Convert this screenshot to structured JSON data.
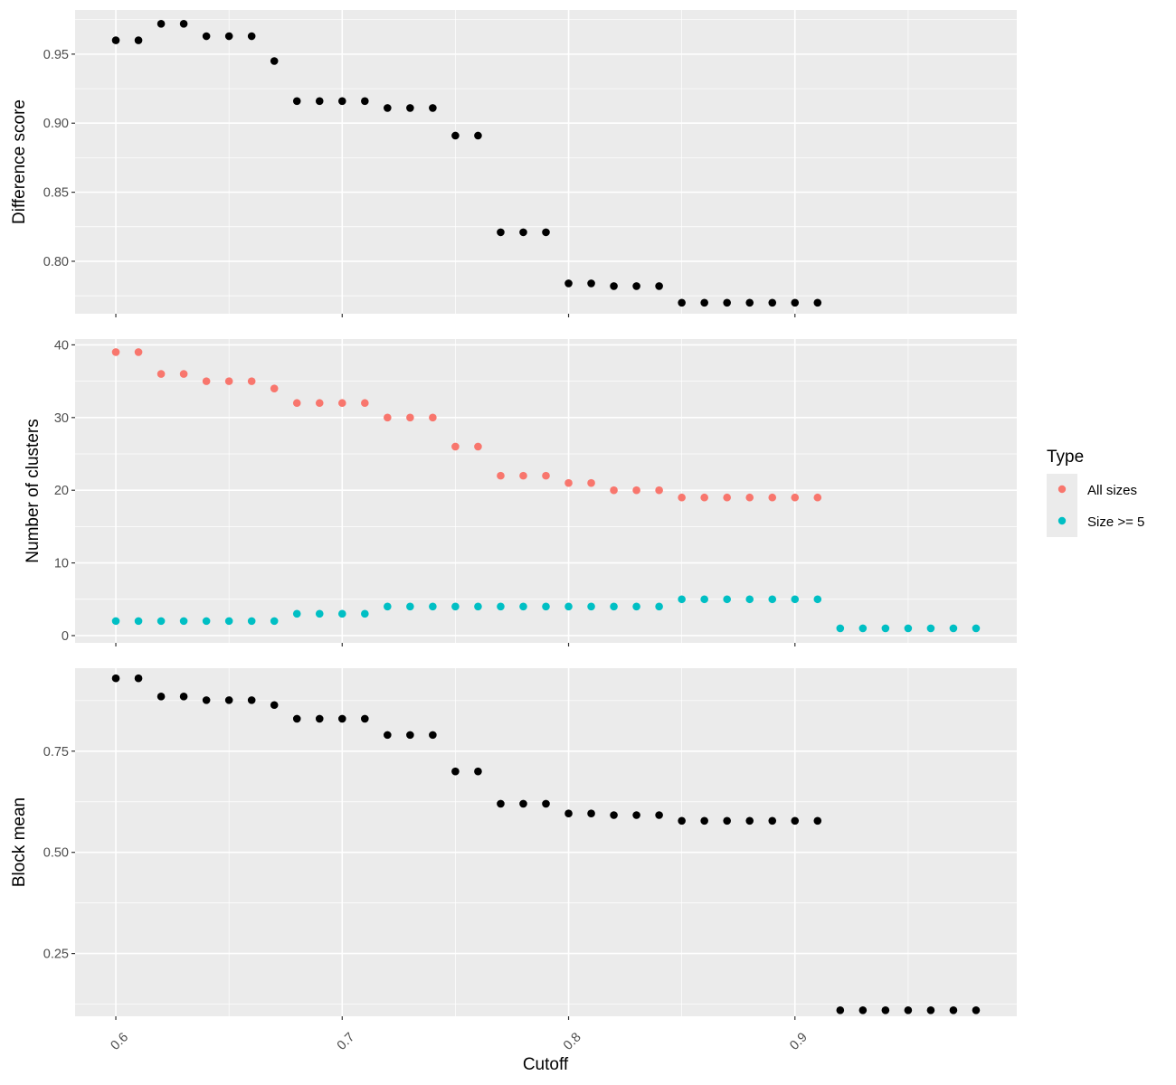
{
  "chart_data": {
    "type": "scatter",
    "xlabel": "Cutoff",
    "x_ticks": [
      0.6,
      0.7,
      0.8,
      0.9
    ],
    "x_tick_labels": [
      "0.6",
      "0.7",
      "0.8",
      "0.9"
    ],
    "xlim": [
      0.582,
      0.998
    ],
    "grid": true,
    "panels": [
      {
        "ylabel": "Difference score",
        "ylim": [
          0.762,
          0.982
        ],
        "y_ticks": [
          0.8,
          0.85,
          0.9,
          0.95
        ],
        "y_tick_labels": [
          "0.80",
          "0.85",
          "0.90",
          "0.95"
        ],
        "series": [
          {
            "color": "#000000",
            "x": [
              0.6,
              0.61,
              0.62,
              0.63,
              0.64,
              0.65,
              0.66,
              0.67,
              0.68,
              0.69,
              0.7,
              0.71,
              0.72,
              0.73,
              0.74,
              0.75,
              0.76,
              0.77,
              0.78,
              0.79,
              0.8,
              0.81,
              0.82,
              0.83,
              0.84,
              0.85,
              0.86,
              0.87,
              0.88,
              0.89,
              0.9,
              0.91
            ],
            "y": [
              0.96,
              0.96,
              0.972,
              0.972,
              0.963,
              0.963,
              0.963,
              0.945,
              0.916,
              0.916,
              0.916,
              0.916,
              0.911,
              0.911,
              0.911,
              0.891,
              0.891,
              0.821,
              0.821,
              0.821,
              0.784,
              0.784,
              0.782,
              0.782,
              0.782,
              0.77,
              0.77,
              0.77,
              0.77,
              0.77,
              0.77,
              0.77
            ]
          }
        ]
      },
      {
        "ylabel": "Number of clusters",
        "ylim": [
          -1,
          40.8
        ],
        "y_ticks": [
          0,
          10,
          20,
          30,
          40
        ],
        "y_tick_labels": [
          "0",
          "10",
          "20",
          "30",
          "40"
        ],
        "series": [
          {
            "name": "All sizes",
            "color": "#F8766D",
            "x": [
              0.6,
              0.61,
              0.62,
              0.63,
              0.64,
              0.65,
              0.66,
              0.67,
              0.68,
              0.69,
              0.7,
              0.71,
              0.72,
              0.73,
              0.74,
              0.75,
              0.76,
              0.77,
              0.78,
              0.79,
              0.8,
              0.81,
              0.82,
              0.83,
              0.84,
              0.85,
              0.86,
              0.87,
              0.88,
              0.89,
              0.9,
              0.91
            ],
            "y": [
              39,
              39,
              36,
              36,
              35,
              35,
              35,
              34,
              32,
              32,
              32,
              32,
              30,
              30,
              30,
              26,
              26,
              22,
              22,
              22,
              21,
              21,
              20,
              20,
              20,
              19,
              19,
              19,
              19,
              19,
              19,
              19
            ]
          },
          {
            "name": "Size >= 5",
            "color": "#00BFC4",
            "x": [
              0.6,
              0.61,
              0.62,
              0.63,
              0.64,
              0.65,
              0.66,
              0.67,
              0.68,
              0.69,
              0.7,
              0.71,
              0.72,
              0.73,
              0.74,
              0.75,
              0.76,
              0.77,
              0.78,
              0.79,
              0.8,
              0.81,
              0.82,
              0.83,
              0.84,
              0.85,
              0.86,
              0.87,
              0.88,
              0.89,
              0.9,
              0.91,
              0.92,
              0.93,
              0.94,
              0.95,
              0.96,
              0.97,
              0.98
            ],
            "y": [
              2,
              2,
              2,
              2,
              2,
              2,
              2,
              2,
              3,
              3,
              3,
              3,
              4,
              4,
              4,
              4,
              4,
              4,
              4,
              4,
              4,
              4,
              4,
              4,
              4,
              5,
              5,
              5,
              5,
              5,
              5,
              5,
              1,
              1,
              1,
              1,
              1,
              1,
              1
            ]
          }
        ]
      },
      {
        "ylabel": "Block mean",
        "ylim": [
          0.095,
          0.955
        ],
        "y_ticks": [
          0.25,
          0.5,
          0.75
        ],
        "y_tick_labels": [
          "0.25",
          "0.50",
          "0.75"
        ],
        "series": [
          {
            "color": "#000000",
            "x": [
              0.6,
              0.61,
              0.62,
              0.63,
              0.64,
              0.65,
              0.66,
              0.67,
              0.68,
              0.69,
              0.7,
              0.71,
              0.72,
              0.73,
              0.74,
              0.75,
              0.76,
              0.77,
              0.78,
              0.79,
              0.8,
              0.81,
              0.82,
              0.83,
              0.84,
              0.85,
              0.86,
              0.87,
              0.88,
              0.89,
              0.9,
              0.91,
              0.92,
              0.93,
              0.94,
              0.95,
              0.96,
              0.97,
              0.98
            ],
            "y": [
              0.93,
              0.93,
              0.885,
              0.885,
              0.876,
              0.876,
              0.876,
              0.864,
              0.83,
              0.83,
              0.83,
              0.83,
              0.79,
              0.79,
              0.79,
              0.7,
              0.7,
              0.62,
              0.62,
              0.62,
              0.596,
              0.596,
              0.592,
              0.592,
              0.592,
              0.578,
              0.578,
              0.578,
              0.578,
              0.578,
              0.578,
              0.578,
              0.11,
              0.11,
              0.11,
              0.11,
              0.11,
              0.11,
              0.11
            ]
          }
        ]
      }
    ],
    "legend": {
      "title": "Type",
      "placement": "right",
      "entries": [
        {
          "label": "All sizes",
          "color": "#F8766D"
        },
        {
          "label": "Size >= 5",
          "color": "#00BFC4"
        }
      ]
    }
  }
}
